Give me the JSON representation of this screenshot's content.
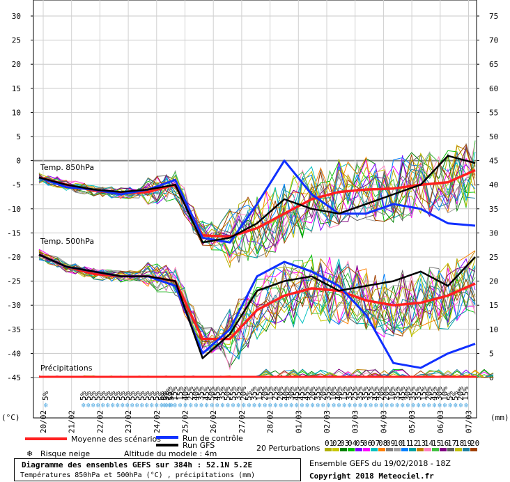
{
  "chart_data": {
    "type": "line",
    "left_axis": {
      "label": "(°C)",
      "ticks": [
        30,
        25,
        20,
        15,
        10,
        5,
        0,
        -5,
        -10,
        -15,
        -20,
        -25,
        -30,
        -35,
        -40,
        -45
      ],
      "ylim": [
        -45,
        30
      ]
    },
    "right_axis": {
      "label": "(mm)",
      "ticks": [
        75,
        70,
        65,
        60,
        55,
        50,
        45,
        40,
        35,
        30,
        25,
        20,
        15,
        10,
        5,
        0
      ]
    },
    "dates": [
      "20/02",
      "21/02",
      "22/02",
      "23/02",
      "24/02",
      "25/02",
      "26/02",
      "27/02",
      "28/02",
      "01/03",
      "02/03",
      "03/03",
      "04/03",
      "05/03",
      "06/03",
      "07/03"
    ],
    "panel_labels": {
      "t850": "Temp. 850hPa",
      "t500": "Temp. 500hPa",
      "precip": "Précipitations"
    },
    "series": [
      {
        "name": "Moyenne des scénarios",
        "color": "#ff2020",
        "t850": [
          -3.5,
          -5,
          -6.2,
          -6.8,
          -6.5,
          -5,
          -15.5,
          -15.8,
          -14,
          -11,
          -8,
          -6.5,
          -6,
          -5.8,
          -5,
          -4.5,
          -2
        ],
        "t500": [
          -19.5,
          -22,
          -23.5,
          -24,
          -24,
          -25,
          -37,
          -37,
          -31,
          -28,
          -26.5,
          -27,
          -29,
          -30,
          -29.5,
          -28,
          -25.5
        ]
      },
      {
        "name": "Run de contrôle",
        "color": "#1030ff",
        "t850": [
          -3.5,
          -5.5,
          -6,
          -7,
          -6,
          -4,
          -16,
          -17,
          -9,
          0,
          -7,
          -11,
          -11,
          -9,
          -10,
          -13,
          -13.5
        ],
        "t500": [
          -19.5,
          -22,
          -23,
          -24,
          -24,
          -26,
          -40,
          -35,
          -24,
          -21,
          -23,
          -26,
          -32,
          -42,
          -43,
          -40,
          -38
        ]
      },
      {
        "name": "Run GFS",
        "color": "#000000",
        "t850": [
          -3.5,
          -5,
          -6,
          -6.5,
          -6,
          -5,
          -17,
          -16,
          -13,
          -8,
          -10,
          -11,
          -9,
          -7,
          -5,
          1,
          -0.5
        ],
        "t500": [
          -19.5,
          -22,
          -23,
          -24,
          -24,
          -25,
          -41,
          -36,
          -27,
          -25,
          -24,
          -27,
          -26,
          -25,
          -23,
          -26,
          -20
        ]
      }
    ],
    "perturbations_label": "20 Perturbations",
    "perturbation_numbers": [
      "01",
      "02",
      "03",
      "04",
      "05",
      "06",
      "07",
      "08",
      "09",
      "10",
      "11",
      "12",
      "13",
      "14",
      "15",
      "16",
      "17",
      "18",
      "19",
      "20"
    ],
    "perturbation_colors": [
      "#b0b000",
      "#c8c800",
      "#008000",
      "#00c000",
      "#8000ff",
      "#ff00ff",
      "#00c0c0",
      "#ff8000",
      "#808080",
      "#a0a0a0",
      "#0080ff",
      "#00a0a0",
      "#c08000",
      "#ff80c0",
      "#40c040",
      "#800080",
      "#606060",
      "#c0c000",
      "#2080a0",
      "#a04000"
    ],
    "snow_row1": [
      "5%"
    ],
    "snow_row2": [
      "5%",
      "5%",
      "5%",
      "5%",
      "5%",
      "5%",
      "5%",
      "5%",
      "5%",
      "5%",
      "5%",
      "5%",
      "5%",
      "5%",
      "5%",
      "5%",
      "5%",
      "5%",
      "5%"
    ],
    "snow_row3": [
      "5%",
      "15%",
      "15%",
      "15%",
      "40%",
      "25%",
      "40%",
      "35%",
      "45%",
      "50%",
      "45%",
      "35%",
      "50%",
      "55%",
      "35%",
      "20%",
      "5%",
      "35%",
      "15%",
      "20%",
      "15%",
      "25%",
      "20%",
      "40%",
      "30%",
      "45%",
      "45%",
      "45%",
      "20%",
      "35%",
      "20%",
      "35%",
      "10%",
      "40%",
      "15%",
      "35%",
      "25%",
      "35%",
      "35%",
      "35%",
      "45%",
      "20%",
      "20%",
      "10%",
      "35%",
      "45%",
      "30%",
      "35%",
      "35%",
      "15%",
      "20%",
      "45%",
      "30%",
      "10%",
      "5%",
      "5%",
      "20%",
      "15%"
    ],
    "precip": {
      "mean": 0.1
    }
  },
  "legend": {
    "mean": "Moyenne des scénarios",
    "control": "Run de contrôle",
    "gfs": "Run GFS",
    "snow": "Risque neige",
    "altitude": "Altitude du modele : 4m"
  },
  "footer": {
    "title": "Diagramme des ensembles GEFS sur 384h : 52.1N 5.2E",
    "subtitle": "Températures 850hPa et 500hPa (°C) , précipitations (mm)",
    "run": "Ensemble GEFS du 19/02/2018 - 18Z",
    "copyright": "Copyright 2018 Meteociel.fr"
  },
  "colors": {
    "mean": "#ff2020",
    "control": "#1030ff",
    "gfs": "#000000",
    "snow": "#4fa8e0",
    "grid": "#a0a0a0"
  }
}
